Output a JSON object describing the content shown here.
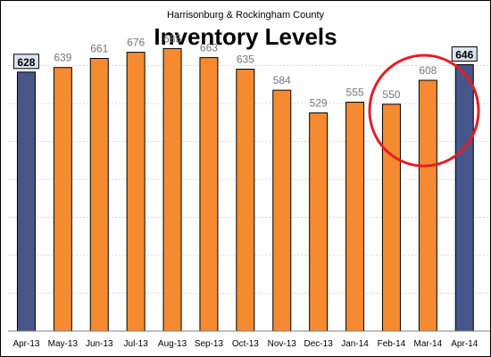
{
  "chart_data": {
    "type": "bar",
    "subtitle": "Harrisonburg & Rockingham County",
    "title": "Inventory Levels",
    "xlabel": "",
    "ylabel": "",
    "ylim": [
      0,
      740
    ],
    "grid": true,
    "categories": [
      "Apr-13",
      "May-13",
      "Jun-13",
      "Jul-13",
      "Aug-13",
      "Sep-13",
      "Oct-13",
      "Nov-13",
      "Dec-13",
      "Jan-14",
      "Feb-14",
      "Mar-14",
      "Apr-14"
    ],
    "values": [
      628,
      639,
      661,
      676,
      685,
      663,
      635,
      584,
      529,
      555,
      550,
      608,
      646
    ],
    "highlighted": [
      "Apr-13",
      "Apr-14"
    ],
    "colors": {
      "bar": "#F68A31",
      "highlight": "#46558A",
      "highlight_label_bg": "#DCE3F0",
      "circle": "#E41E26",
      "grid": "#D9D9D9"
    }
  }
}
